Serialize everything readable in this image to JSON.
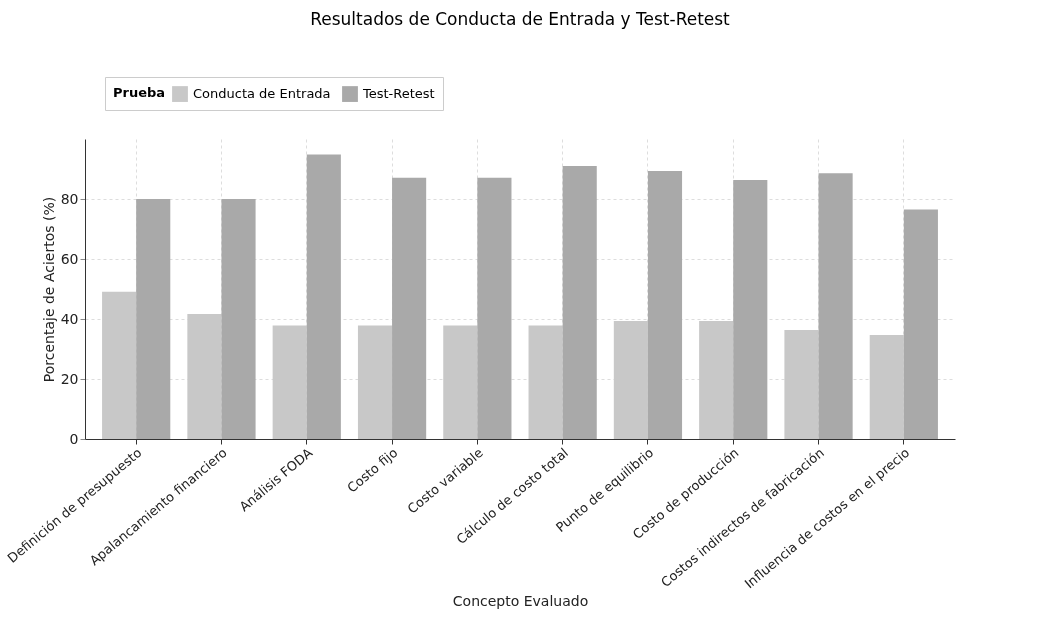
{
  "chart_data": {
    "type": "bar",
    "title": "Resultados de Conducta de Entrada y Test-Retest",
    "xlabel": "Concepto Evaluado",
    "ylabel": "Porcentaje de Aciertos (%)",
    "legend_title": "Prueba",
    "categories": [
      "Definición de presupuesto",
      "Apalancamiento financiero",
      "Análisis FODA",
      "Costo fijo",
      "Costo variable",
      "Cálculo de costo total",
      "Punto de equilibrio",
      "Costo de producción",
      "Costos indirectos de fabricación",
      "Influencia de costos en el precio"
    ],
    "series": [
      {
        "name": "Conducta de Entrada",
        "color": "#c8c8c8",
        "values": [
          49.1,
          41.7,
          37.8,
          37.8,
          37.8,
          37.8,
          39.3,
          39.3,
          36.3,
          34.7
        ]
      },
      {
        "name": "Test-Retest",
        "color": "#a9a9a9",
        "values": [
          80,
          80,
          94.8,
          87.1,
          87.1,
          91.0,
          89.3,
          86.3,
          88.6,
          76.5
        ]
      }
    ],
    "ylim": [
      0,
      100
    ],
    "yticks": [
      0,
      20,
      40,
      60,
      80
    ],
    "grid": true,
    "legend": "top left"
  }
}
